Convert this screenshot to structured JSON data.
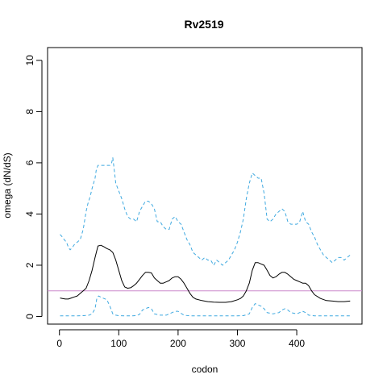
{
  "chart_data": {
    "type": "line",
    "title": "Rv2519",
    "xlabel": "codon",
    "ylabel": "omega (dN/dS)",
    "xlim": [
      -20,
      510
    ],
    "ylim": [
      -0.3,
      10.5
    ],
    "xticks": [
      0,
      100,
      200,
      300,
      400
    ],
    "xtick_labels": [
      "0",
      "100",
      "200",
      "300",
      "400"
    ],
    "yticks": [
      0,
      2,
      4,
      6,
      8,
      10
    ],
    "ytick_labels": [
      "0",
      "2",
      "4",
      "6",
      "8",
      "10"
    ],
    "grid": false,
    "legend": false,
    "reference_line": {
      "y": 1,
      "color": "#cc88cc"
    },
    "series": [
      {
        "role": "upper",
        "color": "#3fa9e0",
        "style": "dashed",
        "x": [
          1,
          5,
          8,
          12,
          15,
          18,
          22,
          25,
          30,
          35,
          40,
          45,
          48,
          52,
          55,
          60,
          62,
          65,
          70,
          75,
          80,
          85,
          88,
          90,
          92,
          95,
          100,
          105,
          110,
          115,
          120,
          125,
          130,
          135,
          140,
          145,
          150,
          155,
          160,
          165,
          170,
          175,
          180,
          185,
          190,
          195,
          200,
          205,
          210,
          215,
          220,
          225,
          230,
          235,
          240,
          245,
          250,
          255,
          260,
          265,
          270,
          275,
          280,
          285,
          290,
          295,
          300,
          305,
          310,
          315,
          320,
          325,
          330,
          335,
          340,
          345,
          350,
          355,
          360,
          365,
          370,
          375,
          380,
          385,
          390,
          395,
          400,
          405,
          410,
          415,
          420,
          425,
          430,
          435,
          440,
          445,
          450,
          455,
          460,
          465,
          470,
          475,
          480,
          485,
          490
        ],
        "y": [
          3.2,
          3.1,
          3.0,
          2.9,
          2.7,
          2.6,
          2.7,
          2.8,
          2.9,
          3.0,
          3.4,
          4.1,
          4.4,
          4.7,
          5.0,
          5.4,
          5.7,
          5.9,
          5.9,
          5.9,
          5.9,
          5.9,
          6.0,
          6.2,
          5.8,
          5.2,
          4.9,
          4.6,
          4.2,
          3.9,
          3.8,
          3.8,
          3.7,
          4.1,
          4.3,
          4.5,
          4.5,
          4.4,
          4.2,
          3.7,
          3.7,
          3.5,
          3.4,
          3.4,
          3.8,
          3.9,
          3.7,
          3.6,
          3.3,
          3.0,
          2.8,
          2.5,
          2.4,
          2.3,
          2.2,
          2.3,
          2.2,
          2.2,
          2.0,
          2.2,
          2.1,
          2.0,
          2.1,
          2.2,
          2.4,
          2.6,
          2.9,
          3.3,
          3.8,
          4.6,
          5.2,
          5.6,
          5.5,
          5.4,
          5.4,
          4.8,
          3.8,
          3.7,
          3.8,
          4.0,
          4.1,
          4.2,
          4.1,
          3.7,
          3.6,
          3.6,
          3.6,
          3.7,
          4.1,
          3.7,
          3.6,
          3.3,
          3.1,
          2.8,
          2.6,
          2.4,
          2.3,
          2.2,
          2.1,
          2.2,
          2.3,
          2.3,
          2.2,
          2.3,
          2.4
        ]
      },
      {
        "role": "estimate",
        "color": "#000000",
        "style": "solid",
        "x": [
          1,
          5,
          10,
          15,
          20,
          25,
          30,
          35,
          40,
          45,
          50,
          55,
          60,
          65,
          70,
          75,
          80,
          85,
          90,
          95,
          100,
          105,
          110,
          115,
          120,
          125,
          130,
          135,
          140,
          145,
          150,
          155,
          160,
          165,
          170,
          175,
          180,
          185,
          190,
          195,
          200,
          205,
          210,
          215,
          220,
          225,
          230,
          240,
          250,
          260,
          270,
          280,
          290,
          300,
          305,
          310,
          315,
          320,
          325,
          330,
          335,
          340,
          345,
          350,
          355,
          360,
          365,
          370,
          375,
          380,
          385,
          390,
          395,
          400,
          405,
          410,
          415,
          420,
          425,
          430,
          440,
          450,
          460,
          470,
          480,
          490
        ],
        "y": [
          0.72,
          0.7,
          0.68,
          0.68,
          0.72,
          0.76,
          0.8,
          0.9,
          1.0,
          1.1,
          1.4,
          1.8,
          2.3,
          2.75,
          2.78,
          2.72,
          2.65,
          2.6,
          2.5,
          2.2,
          1.8,
          1.4,
          1.15,
          1.1,
          1.12,
          1.2,
          1.3,
          1.45,
          1.6,
          1.72,
          1.72,
          1.7,
          1.5,
          1.4,
          1.3,
          1.3,
          1.35,
          1.4,
          1.5,
          1.55,
          1.55,
          1.45,
          1.3,
          1.1,
          0.9,
          0.75,
          0.68,
          0.62,
          0.58,
          0.56,
          0.55,
          0.55,
          0.58,
          0.65,
          0.7,
          0.8,
          1.0,
          1.3,
          1.8,
          2.1,
          2.1,
          2.05,
          2.0,
          1.8,
          1.6,
          1.5,
          1.55,
          1.65,
          1.72,
          1.72,
          1.65,
          1.55,
          1.45,
          1.4,
          1.35,
          1.3,
          1.3,
          1.2,
          1.0,
          0.85,
          0.7,
          0.62,
          0.6,
          0.58,
          0.58,
          0.6
        ]
      },
      {
        "role": "lower",
        "color": "#3fa9e0",
        "style": "dashed",
        "x": [
          1,
          10,
          20,
          30,
          40,
          50,
          55,
          60,
          63,
          66,
          70,
          75,
          80,
          85,
          90,
          95,
          100,
          110,
          120,
          130,
          135,
          140,
          145,
          150,
          155,
          160,
          170,
          180,
          190,
          195,
          200,
          205,
          210,
          220,
          230,
          240,
          260,
          280,
          300,
          310,
          320,
          325,
          330,
          335,
          340,
          345,
          350,
          360,
          370,
          375,
          380,
          385,
          390,
          400,
          405,
          410,
          415,
          420,
          430,
          440,
          460,
          480,
          490
        ],
        "y": [
          0.02,
          0.02,
          0.02,
          0.02,
          0.03,
          0.05,
          0.1,
          0.3,
          0.7,
          0.8,
          0.75,
          0.7,
          0.65,
          0.4,
          0.1,
          0.05,
          0.03,
          0.02,
          0.02,
          0.03,
          0.08,
          0.25,
          0.3,
          0.35,
          0.3,
          0.1,
          0.05,
          0.05,
          0.15,
          0.2,
          0.2,
          0.12,
          0.05,
          0.02,
          0.02,
          0.02,
          0.02,
          0.02,
          0.02,
          0.03,
          0.1,
          0.35,
          0.5,
          0.45,
          0.4,
          0.3,
          0.15,
          0.1,
          0.15,
          0.25,
          0.3,
          0.25,
          0.15,
          0.1,
          0.15,
          0.2,
          0.15,
          0.05,
          0.02,
          0.02,
          0.02,
          0.02,
          0.02
        ]
      }
    ]
  }
}
